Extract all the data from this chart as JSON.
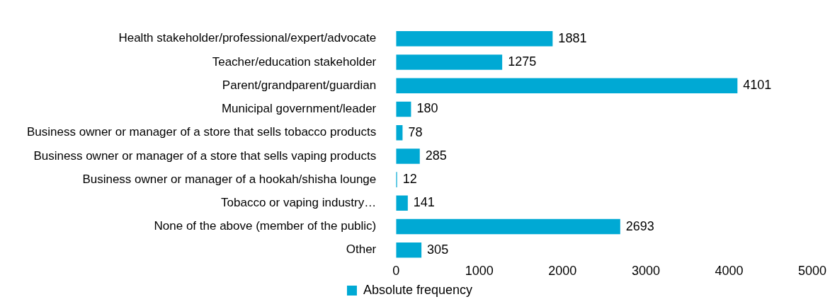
{
  "chart_data": {
    "type": "bar",
    "orientation": "horizontal",
    "categories": [
      "Health stakeholder/professional/expert/advocate",
      "Teacher/education stakeholder",
      "Parent/grandparent/guardian",
      "Municipal government/leader",
      "Business owner or manager of a store that sells tobacco products",
      "Business owner or manager of a store that sells vaping products",
      "Business owner or manager of a hookah/shisha lounge",
      "Tobacco or vaping industry…",
      "None of the above (member of the public)",
      "Other"
    ],
    "series": [
      {
        "name": "Absolute frequency",
        "color": "#00a9d4",
        "values": [
          1881,
          1275,
          4101,
          180,
          78,
          285,
          12,
          141,
          2693,
          305
        ]
      }
    ],
    "xlim": [
      0,
      5000
    ],
    "xticks": [
      0,
      1000,
      2000,
      3000,
      4000,
      5000
    ],
    "grid": false,
    "legend": "bottom",
    "data_labels": true
  }
}
